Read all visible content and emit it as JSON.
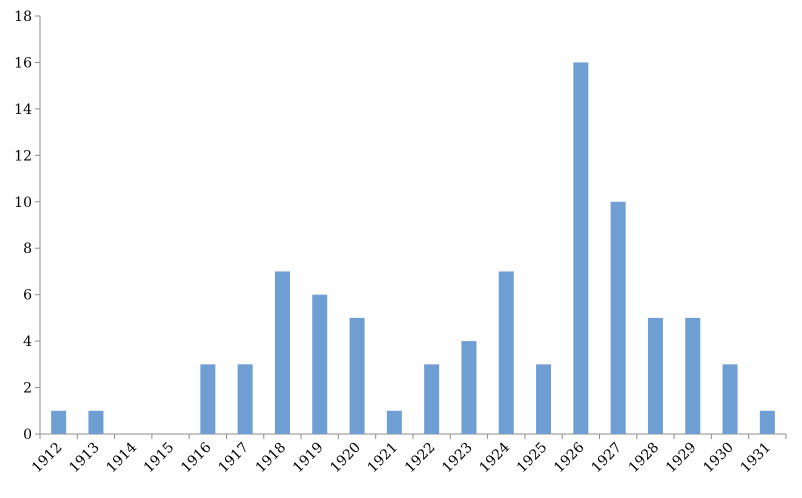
{
  "chart_data": {
    "type": "bar",
    "title": "",
    "xlabel": "",
    "ylabel": "",
    "categories": [
      "1912",
      "1913",
      "1914",
      "1915",
      "1916",
      "1917",
      "1918",
      "1919",
      "1920",
      "1921",
      "1922",
      "1923",
      "1924",
      "1925",
      "1926",
      "1927",
      "1928",
      "1929",
      "1930",
      "1931"
    ],
    "values": [
      1,
      1,
      0,
      0,
      3,
      3,
      7,
      6,
      5,
      1,
      3,
      4,
      7,
      3,
      16,
      10,
      5,
      5,
      3,
      1
    ],
    "ylim": [
      0,
      18
    ],
    "yticks": [
      0,
      2,
      4,
      6,
      8,
      10,
      12,
      14,
      16,
      18
    ],
    "grid": false,
    "legend": "none",
    "bar_color": "#6f9ed2"
  }
}
